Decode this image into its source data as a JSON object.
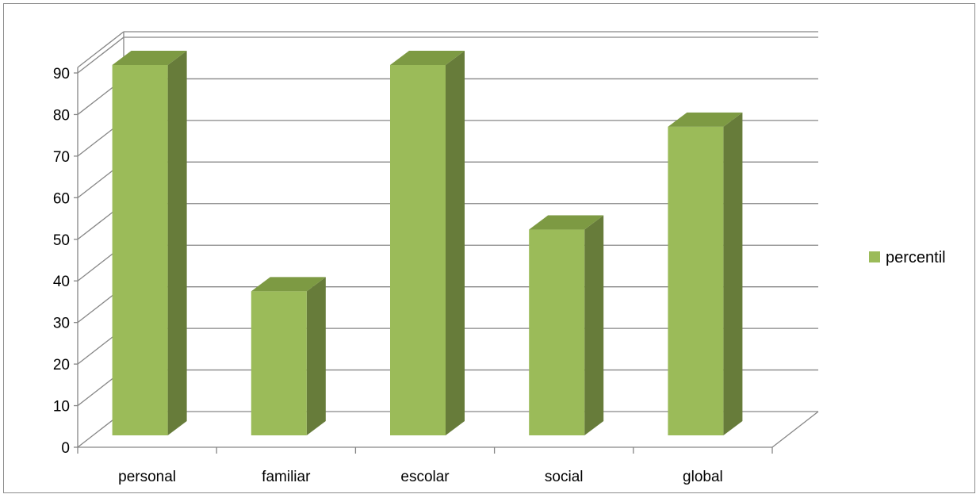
{
  "chart_data": {
    "type": "bar",
    "style": "3d-column",
    "categories": [
      "personal",
      "familiar",
      "escolar",
      "social",
      "global"
    ],
    "series": [
      {
        "name": "percentil",
        "values": [
          90,
          35,
          90,
          50,
          75
        ]
      }
    ],
    "title": "",
    "xlabel": "",
    "ylabel": "",
    "ylim": [
      0,
      90
    ],
    "yticks": [
      "0",
      "10",
      "20",
      "30",
      "40",
      "50",
      "60",
      "70",
      "80",
      "90"
    ],
    "grid": true,
    "legend_position": "right",
    "colors": {
      "front": "#9bbb59",
      "side": "#677c3a",
      "top": "#7d9a43",
      "grid": "#868686"
    }
  }
}
